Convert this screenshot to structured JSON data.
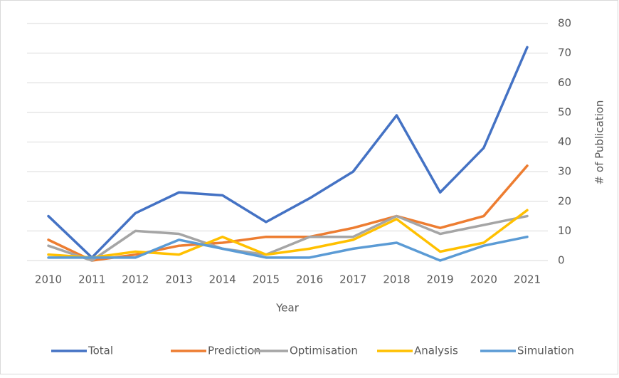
{
  "chart_data": {
    "type": "line",
    "categories": [
      "2010",
      "2011",
      "2012",
      "2013",
      "2014",
      "2015",
      "2016",
      "2017",
      "2018",
      "2019",
      "2020",
      "2021"
    ],
    "x_label": "Year",
    "y_label": "# of Publication",
    "ylim": [
      0,
      80
    ],
    "yticks": [
      0,
      10,
      20,
      30,
      40,
      50,
      60,
      70,
      80
    ],
    "grid": true,
    "y_axis_side": "right",
    "legend": "bottom",
    "series": [
      {
        "name": "Total",
        "color": "#4472c4",
        "values": [
          15,
          1,
          16,
          23,
          22,
          13,
          21,
          30,
          49,
          23,
          38,
          72
        ]
      },
      {
        "name": "Prediction",
        "color": "#ed7d31",
        "values": [
          7,
          0,
          2,
          5,
          6,
          8,
          8,
          11,
          15,
          11,
          15,
          32
        ]
      },
      {
        "name": "Optimisation",
        "color": "#a5a5a5",
        "values": [
          5,
          0,
          10,
          9,
          4,
          2,
          8,
          8,
          15,
          9,
          12,
          15
        ]
      },
      {
        "name": "Analysis",
        "color": "#ffc000",
        "values": [
          2,
          1,
          3,
          2,
          8,
          2,
          4,
          7,
          14,
          3,
          6,
          17
        ]
      },
      {
        "name": "Simulation",
        "color": "#5b9bd5",
        "values": [
          1,
          1,
          1,
          7,
          4,
          1,
          1,
          4,
          6,
          0,
          5,
          8
        ]
      }
    ]
  }
}
